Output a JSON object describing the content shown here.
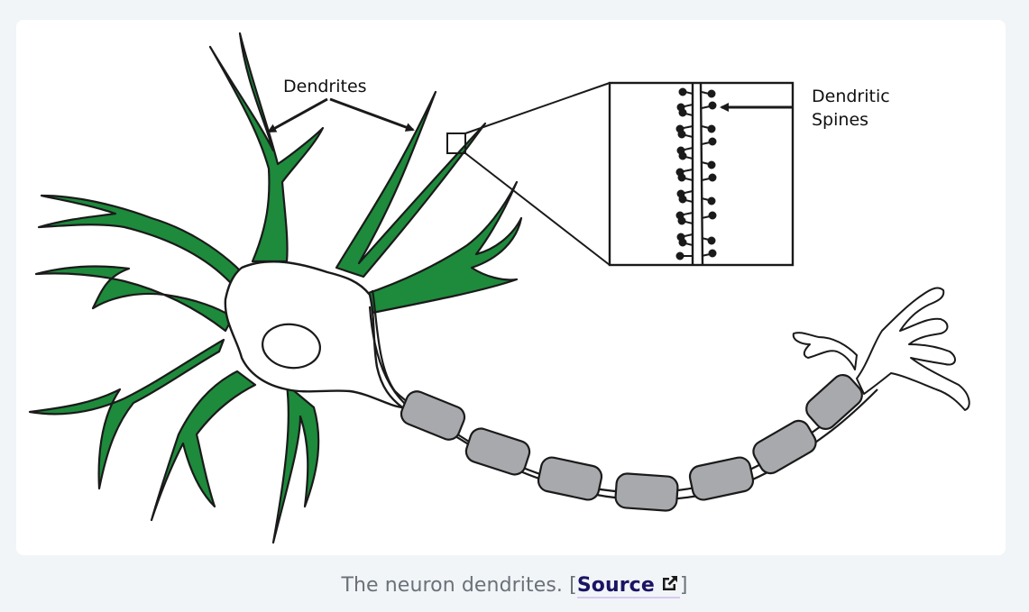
{
  "figure": {
    "labels": {
      "dendrites": "Dendrites",
      "spines_line1": "Dendritic",
      "spines_line2": "Spines"
    },
    "colors": {
      "dendrite_fill": "#1e8a3c",
      "outline": "#1a1a1a",
      "myelin": "#a7a9ac",
      "background": "#ffffff"
    }
  },
  "caption": {
    "text": "The neuron dendrites. [",
    "link_label": "Source",
    "close": "]",
    "link_icon": "external-link-icon"
  }
}
